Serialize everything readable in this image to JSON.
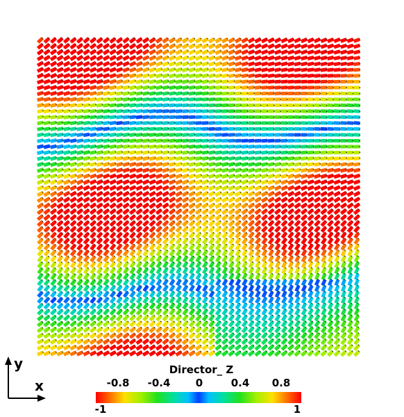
{
  "scalar_bar": {
    "title": "Director_ Z",
    "top_ticks": [
      "-0.8",
      "-0.4",
      "0",
      "0.4",
      "0.8"
    ],
    "top_tick_values": [
      -0.8,
      -0.4,
      0,
      0.4,
      0.8
    ],
    "bottom_ticks": [
      "-1",
      "1"
    ],
    "range": [
      -1,
      1
    ]
  },
  "axes": {
    "x_label": "x",
    "y_label": "y"
  },
  "colors": {
    "red": "#ff0000",
    "yellow": "#ffe000",
    "green": "#20e020",
    "cyan": "#00c0ff",
    "blue": "#0040ff"
  }
}
